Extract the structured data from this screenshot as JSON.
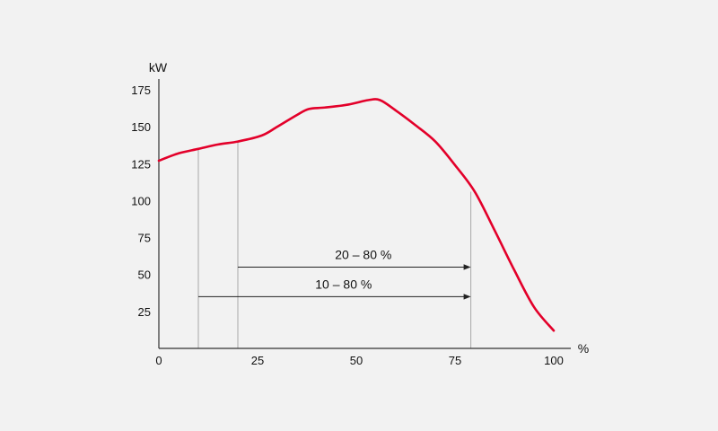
{
  "chart_data": {
    "type": "line",
    "title": "",
    "xlabel": "%",
    "ylabel": "kW",
    "xlim": [
      0,
      100
    ],
    "ylim": [
      0,
      175
    ],
    "x_ticks": [
      0,
      25,
      50,
      75,
      100
    ],
    "y_ticks": [
      25,
      50,
      75,
      100,
      125,
      150,
      175
    ],
    "grid": false,
    "colors": {
      "series": "#e3002a",
      "axis": "#333333",
      "guide": "#a8a8a8",
      "arrow": "#222222"
    },
    "series": [
      {
        "x": [
          0,
          5,
          10,
          15,
          20,
          26,
          30,
          35,
          38,
          42,
          48,
          53,
          56,
          60,
          65,
          70,
          75,
          80,
          85,
          90,
          95,
          100
        ],
        "values": [
          127,
          132,
          135,
          138,
          140,
          144,
          150,
          158,
          162,
          163,
          165,
          168,
          168,
          161,
          151,
          140,
          124,
          106,
          80,
          53,
          28,
          12
        ]
      }
    ],
    "guides": [
      {
        "x": 10,
        "y": 135
      },
      {
        "x": 20,
        "y": 140
      },
      {
        "x": 79,
        "y": 106
      }
    ],
    "ranges": [
      {
        "label": "20 – 80 %",
        "x_start": 20,
        "x_end": 79,
        "y": 55
      },
      {
        "label": "10 – 80 %",
        "x_start": 10,
        "x_end": 79,
        "y": 35
      }
    ]
  }
}
